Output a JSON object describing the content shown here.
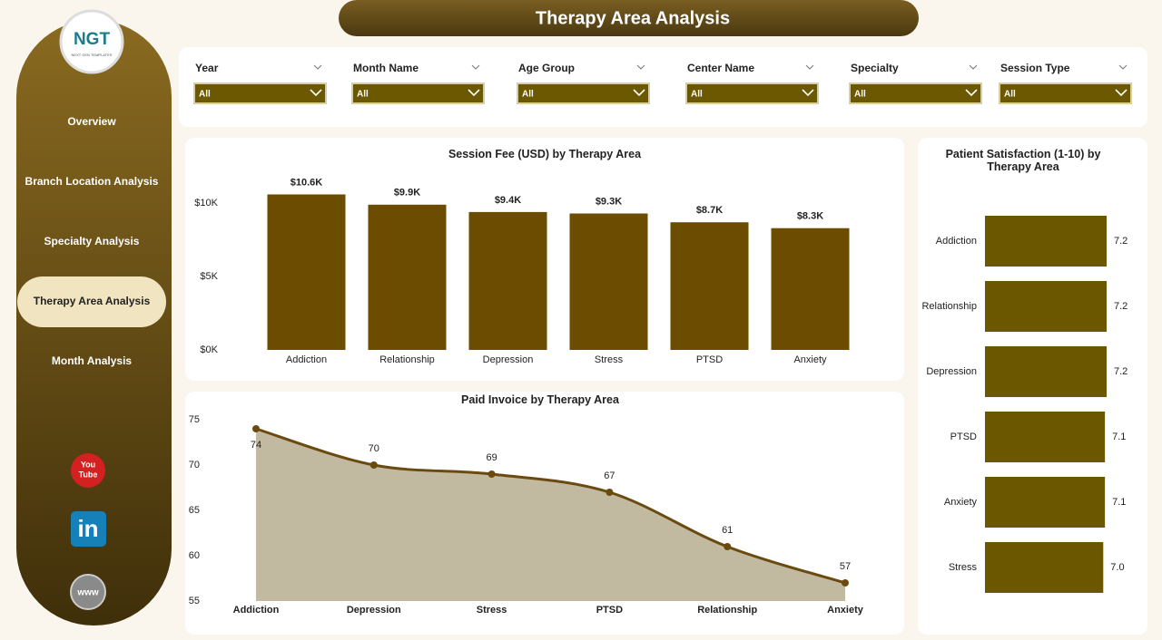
{
  "header": {
    "title": "Therapy Area Analysis",
    "logo": "NGT",
    "logo_sub": "NEXT GEN TEMPLATES"
  },
  "nav": [
    {
      "label": "Overview",
      "active": false
    },
    {
      "label": "Branch Location Analysis",
      "active": false
    },
    {
      "label": "Specialty Analysis",
      "active": false
    },
    {
      "label": "Therapy Area Analysis",
      "active": true
    },
    {
      "label": "Month Analysis",
      "active": false
    }
  ],
  "social": {
    "youtube": [
      "You",
      "Tube"
    ],
    "linkedin": "in",
    "web": "www"
  },
  "filters": [
    {
      "label": "Year",
      "value": "All"
    },
    {
      "label": "Month Name",
      "value": "All"
    },
    {
      "label": "Age Group",
      "value": "All"
    },
    {
      "label": "Center Name",
      "value": "All"
    },
    {
      "label": "Specialty",
      "value": "All"
    },
    {
      "label": "Session Type",
      "value": "All"
    }
  ],
  "chart_data": [
    {
      "type": "bar",
      "title": "Session Fee (USD) by Therapy Area",
      "categories": [
        "Addiction",
        "Relationship",
        "Depression",
        "Stress",
        "PTSD",
        "Anxiety"
      ],
      "values": [
        10600,
        9900,
        9400,
        9300,
        8700,
        8300
      ],
      "value_labels": [
        "$10.6K",
        "$9.9K",
        "$9.4K",
        "$9.3K",
        "$8.7K",
        "$8.3K"
      ],
      "color": "#6b4c00",
      "ylim": [
        0,
        11000
      ],
      "yticks": [
        {
          "value": 0,
          "label": "$0K"
        },
        {
          "value": 5000,
          "label": "$5K"
        },
        {
          "value": 10000,
          "label": "$10K"
        }
      ]
    },
    {
      "type": "area",
      "title": "Paid Invoice by Therapy Area",
      "categories": [
        "Addiction",
        "Depression",
        "Stress",
        "PTSD",
        "Relationship",
        "Anxiety"
      ],
      "values": [
        74,
        70,
        69,
        67,
        61,
        57
      ],
      "color": "#6b4a10",
      "fill": "#c2b9a1",
      "ylim": [
        55,
        75
      ],
      "yticks": [
        55,
        60,
        65,
        70,
        75
      ]
    },
    {
      "type": "hbar",
      "title": "Patient Satisfaction (1-10) by Therapy Area",
      "categories": [
        "Addiction",
        "Relationship",
        "Depression",
        "PTSD",
        "Anxiety",
        "Stress"
      ],
      "values": [
        7.2,
        7.2,
        7.2,
        7.1,
        7.1,
        7.0
      ],
      "value_labels": [
        "7.2",
        "7.2",
        "7.2",
        "7.1",
        "7.1",
        "7.0"
      ],
      "color": "#6b5700",
      "xlim": [
        0,
        7.2
      ]
    }
  ]
}
